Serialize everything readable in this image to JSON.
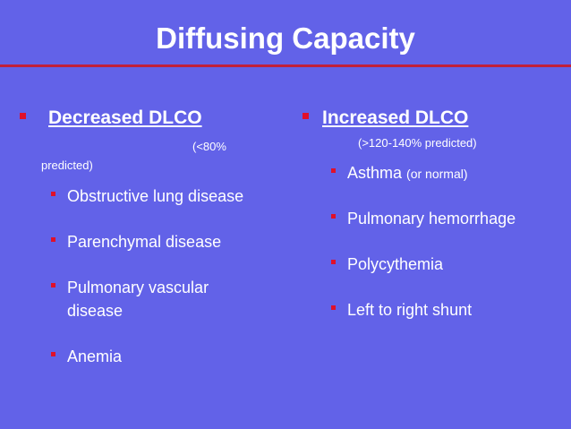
{
  "slide": {
    "title": "Diffusing Capacity"
  },
  "left": {
    "heading": "Decreased DLCO",
    "note_part1": "(<80%",
    "note_part2": "predicted)",
    "items": [
      {
        "line1": "Obstructive lung disease"
      },
      {
        "line1": "Parenchymal disease"
      },
      {
        "line1": "Pulmonary vascular",
        "line2": "disease"
      },
      {
        "line1": "Anemia"
      }
    ]
  },
  "right": {
    "heading": "Increased DLCO",
    "note": "(>120-140% predicted)",
    "items": [
      {
        "text": "Asthma",
        "sub": "(or normal)"
      },
      {
        "text": "Pulmonary hemorrhage"
      },
      {
        "text": "Polycythemia"
      },
      {
        "text": "Left to right shunt"
      }
    ]
  },
  "colors": {
    "background": "#6262e8",
    "bullet": "#e0102a",
    "rule": "#c0203a",
    "text": "#ffffff"
  }
}
